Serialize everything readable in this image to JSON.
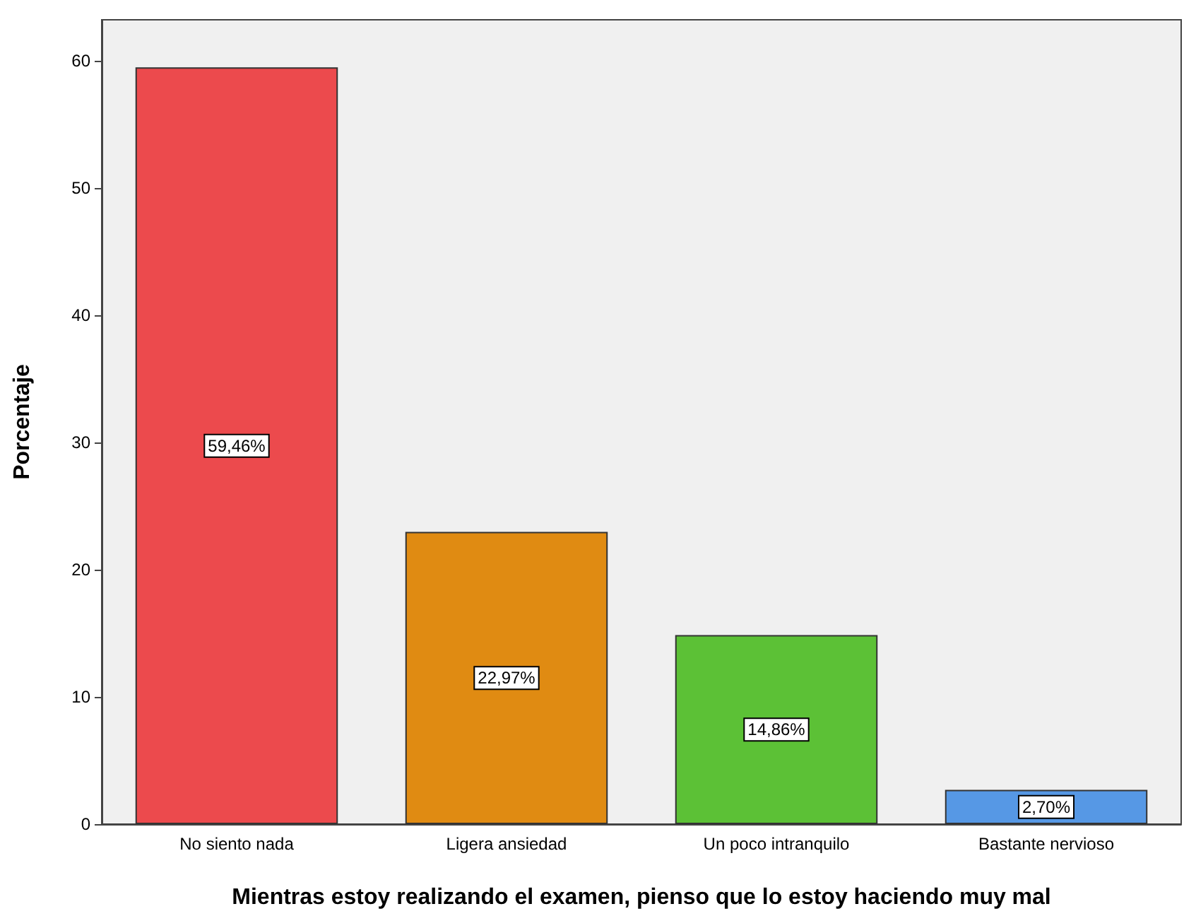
{
  "chart_data": {
    "type": "bar",
    "xlabel": "Mientras estoy realizando el examen, pienso que lo estoy haciendo muy mal",
    "ylabel": "Porcentaje",
    "categories": [
      "No siento nada",
      "Ligera ansiedad",
      "Un poco intranquilo",
      "Bastante nervioso"
    ],
    "values": [
      59.46,
      22.97,
      14.86,
      2.7
    ],
    "colors": [
      "#ec4a4d",
      "#e08b12",
      "#5cc136",
      "#5698e5"
    ],
    "value_labels": [
      "59,46%",
      "22,97%",
      "14,86%",
      "2,70%"
    ],
    "ylim": [
      0,
      63.2
    ],
    "yticks": [
      0,
      10,
      20,
      30,
      40,
      50,
      60
    ]
  }
}
